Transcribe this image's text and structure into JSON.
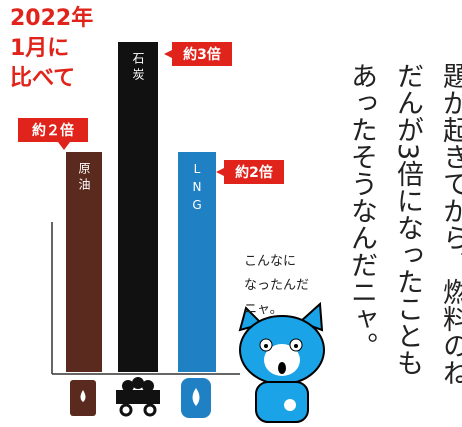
{
  "chart_data": {
    "type": "bar",
    "title_lines": [
      "2022年",
      "1月に",
      "比べて"
    ],
    "categories": [
      "原油",
      "石炭",
      "LNG"
    ],
    "values": [
      2,
      3,
      2
    ],
    "value_labels": [
      "約２倍",
      "約3倍",
      "約2倍"
    ],
    "colors": [
      "#5b2a1f",
      "#111111",
      "#1f80c4"
    ],
    "speech_lines": [
      "こんなに",
      "なったんだ",
      "ニャ。"
    ],
    "narration_columns": [
      "題が起きてから、燃料のね",
      "だんが3倍になったことも",
      "あったそうなんだニャ。"
    ]
  }
}
